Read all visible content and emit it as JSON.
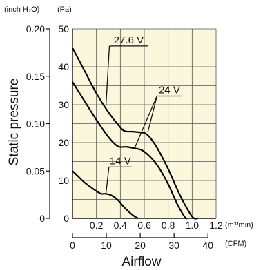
{
  "chart_data": {
    "type": "line",
    "title": "",
    "xlabel": "Airflow",
    "ylabel": "Static pressure",
    "x_primary": {
      "unit": "(m³/min)",
      "range": [
        0,
        1.2
      ],
      "ticks": [
        0,
        0.2,
        0.4,
        0.6,
        0.8,
        1.0,
        1.2
      ],
      "tick_labels": [
        "0",
        "0.2",
        "0.4",
        "0.6",
        "0.8",
        "1.0",
        "1.2"
      ]
    },
    "x_secondary": {
      "unit": "(CFM)",
      "range": [
        0,
        42.4
      ],
      "ticks": [
        0,
        10,
        20,
        30,
        40
      ],
      "tick_labels": [
        "0",
        "10",
        "20",
        "30",
        "40"
      ]
    },
    "y_primary": {
      "unit": "(Pa)",
      "range": [
        0,
        50
      ],
      "ticks": [
        0,
        10,
        20,
        30,
        40,
        50
      ],
      "tick_labels": [
        "0",
        "10",
        "20",
        "30",
        "40",
        "50"
      ]
    },
    "y_secondary": {
      "unit": "(inch H₂O)",
      "range": [
        0,
        0.2
      ],
      "ticks": [
        0,
        0.05,
        0.1,
        0.15,
        0.2
      ],
      "tick_labels": [
        "0",
        "0.05",
        "0.10",
        "0.15",
        "0.20"
      ]
    },
    "grid": true,
    "plot_background": "#fbf7dc",
    "line_color": "#000000",
    "series": [
      {
        "name": "27.6 V",
        "x": [
          0,
          0.1,
          0.2,
          0.3,
          0.4,
          0.44,
          0.5,
          0.56,
          0.62,
          0.7,
          0.8,
          0.9,
          1.0,
          1.05
        ],
        "y": [
          45,
          39,
          33,
          28,
          24,
          23,
          22.9,
          22.7,
          22.2,
          19,
          13,
          6,
          0.5,
          0
        ]
      },
      {
        "name": "24 V",
        "x": [
          0,
          0.1,
          0.2,
          0.3,
          0.38,
          0.45,
          0.5,
          0.58,
          0.65,
          0.72,
          0.8,
          0.88,
          0.94,
          0.96
        ],
        "y": [
          36,
          31,
          26,
          21.5,
          19,
          18.9,
          18.6,
          18,
          16.2,
          13.5,
          9,
          3.5,
          0.3,
          0
        ]
      },
      {
        "name": "14 V",
        "x": [
          0,
          0.05,
          0.1,
          0.15,
          0.2,
          0.24,
          0.28,
          0.33,
          0.38,
          0.43,
          0.48,
          0.52,
          0.55
        ],
        "y": [
          12.5,
          11,
          9.5,
          8.3,
          7.2,
          6.5,
          6.5,
          6,
          4.8,
          3,
          1.5,
          0.5,
          0
        ]
      }
    ]
  }
}
